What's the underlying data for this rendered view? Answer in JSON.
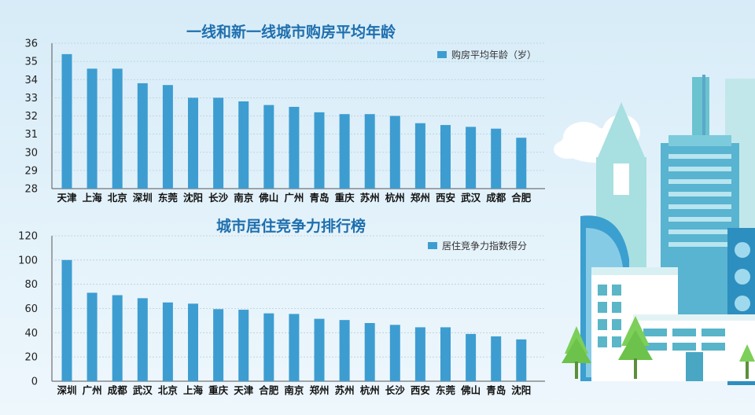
{
  "colors": {
    "bar": "#3d9dd1",
    "title": "#1f6fae",
    "sky_top": "#dbeef9",
    "sky_bottom": "#eef7fc"
  },
  "illustration": {
    "icons": [
      "cloud-icon",
      "building-icon",
      "tree-icon"
    ]
  },
  "chart_data": [
    {
      "type": "bar",
      "title": "一线和新一线城市购房平均年龄",
      "legend": "购房平均年龄（岁）",
      "legend_position": "top-right",
      "categories": [
        "天津",
        "上海",
        "北京",
        "深圳",
        "东莞",
        "沈阳",
        "长沙",
        "南京",
        "佛山",
        "广州",
        "青岛",
        "重庆",
        "苏州",
        "杭州",
        "郑州",
        "西安",
        "武汉",
        "成都",
        "合肥"
      ],
      "values": [
        35.4,
        34.6,
        34.6,
        33.8,
        33.7,
        33.0,
        33.0,
        32.8,
        32.6,
        32.5,
        32.2,
        32.1,
        32.1,
        32.0,
        31.6,
        31.5,
        31.4,
        31.3,
        30.8
      ],
      "ylim": [
        28,
        36
      ],
      "yticks": [
        28,
        29,
        30,
        31,
        32,
        33,
        34,
        35,
        36
      ],
      "grid": true
    },
    {
      "type": "bar",
      "title": "城市居住竞争力排行榜",
      "legend": "居住竞争力指数得分",
      "legend_position": "top-right",
      "categories": [
        "深圳",
        "广州",
        "成都",
        "武汉",
        "北京",
        "上海",
        "重庆",
        "天津",
        "合肥",
        "南京",
        "郑州",
        "苏州",
        "杭州",
        "长沙",
        "西安",
        "东莞",
        "佛山",
        "青岛",
        "沈阳"
      ],
      "values": [
        100,
        73,
        71,
        68.5,
        65,
        64,
        59.5,
        59,
        56,
        55.5,
        51.5,
        50.5,
        48,
        46.5,
        44.5,
        44.5,
        39,
        37,
        34.5
      ],
      "ylim": [
        0,
        120
      ],
      "yticks": [
        0,
        20,
        40,
        60,
        80,
        100,
        120
      ],
      "grid": true
    }
  ]
}
